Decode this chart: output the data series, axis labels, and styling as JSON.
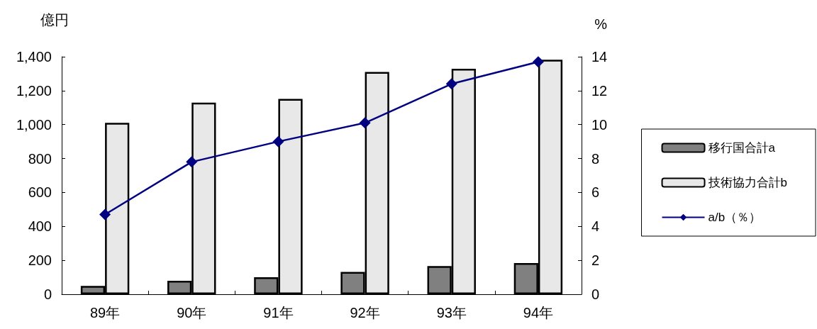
{
  "chart_data": {
    "type": "bar",
    "ylabel": "億円",
    "y2label": "%",
    "categories": [
      "89年",
      "90年",
      "91年",
      "92年",
      "93年",
      "94年"
    ],
    "series": [
      {
        "name": "移行国合計a",
        "color": "#808080",
        "values": [
          49,
          79,
          100,
          132,
          166,
          184
        ]
      },
      {
        "name": "技術協力合計b",
        "color": "#e8e8e8",
        "values": [
          1010,
          1129,
          1151,
          1310,
          1329,
          1382
        ]
      },
      {
        "name": "a/b（％）",
        "type": "line",
        "axis": "y2",
        "color": "#000080",
        "marker": "diamond",
        "line_style": "solid",
        "values": [
          4.7,
          7.8,
          9.0,
          10.1,
          12.4,
          13.7
        ]
      }
    ],
    "ylim": [
      0,
      1400
    ],
    "yticks": [
      0,
      200,
      400,
      600,
      800,
      {
        "value": 1000,
        "label": "1,000"
      },
      {
        "value": 1200,
        "label": "1,200"
      },
      {
        "value": 1400,
        "label": "1,400"
      }
    ],
    "y2lim": [
      0,
      14
    ],
    "y2ticks": [
      0,
      2,
      4,
      6,
      8,
      10,
      12,
      14
    ],
    "grid": false,
    "legend": "right"
  }
}
